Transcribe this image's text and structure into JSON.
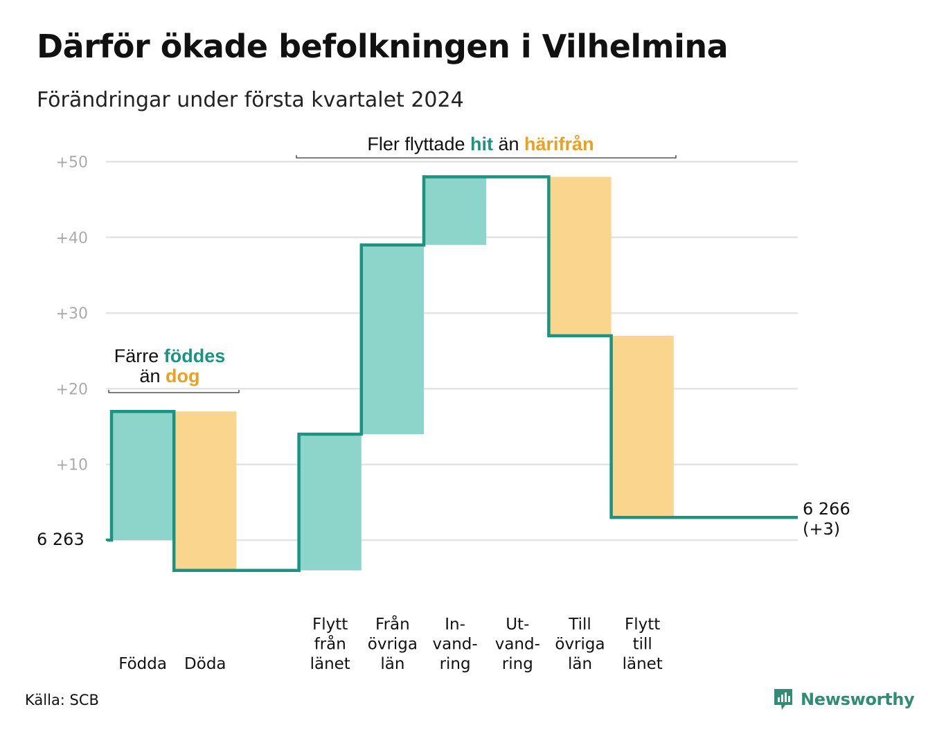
{
  "title": "Därför ökade befolkningen i Vilhelmina",
  "subtitle": "Förändringar under första kvartalet 2024",
  "source": "Källa: SCB",
  "brand": "Newsworthy",
  "colors": {
    "line": "#1a9381",
    "increase": "#8dd5cb",
    "decrease": "#fad58e",
    "teal_text": "#1a9381",
    "orange_text": "#eda020",
    "grid": "#e3e3e3",
    "tick": "#aaaaaa"
  },
  "chart_data": {
    "type": "waterfall",
    "start_value": 6263,
    "start_label": "6  263",
    "end_value": 6266,
    "end_label_lines": [
      "6 266",
      "(+3)"
    ],
    "baseline_offset": 0,
    "y_ticks": [
      {
        "value": 10,
        "label": "+10"
      },
      {
        "value": 20,
        "label": "+20"
      },
      {
        "value": 30,
        "label": "+30"
      },
      {
        "value": 40,
        "label": "+40"
      },
      {
        "value": 50,
        "label": "+50"
      }
    ],
    "ylim": [
      -5,
      50
    ],
    "steps": [
      {
        "label_lines": [
          "Födda"
        ],
        "change": 17,
        "kind": "increase"
      },
      {
        "label_lines": [
          "Döda"
        ],
        "change": -21,
        "kind": "decrease"
      },
      {
        "label_lines": [],
        "change": 0,
        "kind": "gap"
      },
      {
        "label_lines": [
          "Flytt",
          "från",
          "länet"
        ],
        "change": 18,
        "kind": "increase"
      },
      {
        "label_lines": [
          "Från",
          "övriga",
          "län"
        ],
        "change": 25,
        "kind": "increase"
      },
      {
        "label_lines": [
          "In-",
          "vand-",
          "ring"
        ],
        "change": 9,
        "kind": "increase"
      },
      {
        "label_lines": [
          "Ut-",
          "vand-",
          "ring"
        ],
        "change": 0,
        "kind": "decrease"
      },
      {
        "label_lines": [
          "Till",
          "övriga",
          "län"
        ],
        "change": -21,
        "kind": "decrease"
      },
      {
        "label_lines": [
          "Flytt",
          "till",
          "länet"
        ],
        "change": -24,
        "kind": "decrease"
      }
    ],
    "annotations": [
      {
        "id": "births-deaths",
        "parts_line1": [
          {
            "text": "Färre ",
            "tone": "plain"
          },
          {
            "text": "föddes",
            "tone": "teal"
          }
        ],
        "parts_line2": [
          {
            "text": "än ",
            "tone": "plain"
          },
          {
            "text": "dog",
            "tone": "orange"
          }
        ],
        "span_steps": [
          0,
          1
        ]
      },
      {
        "id": "migration",
        "parts_line1": [
          {
            "text": "Fler flyttade ",
            "tone": "plain"
          },
          {
            "text": "hit",
            "tone": "teal"
          },
          {
            "text": " än ",
            "tone": "plain"
          },
          {
            "text": "härifrån",
            "tone": "orange"
          }
        ],
        "span_steps": [
          3,
          8
        ]
      }
    ]
  }
}
